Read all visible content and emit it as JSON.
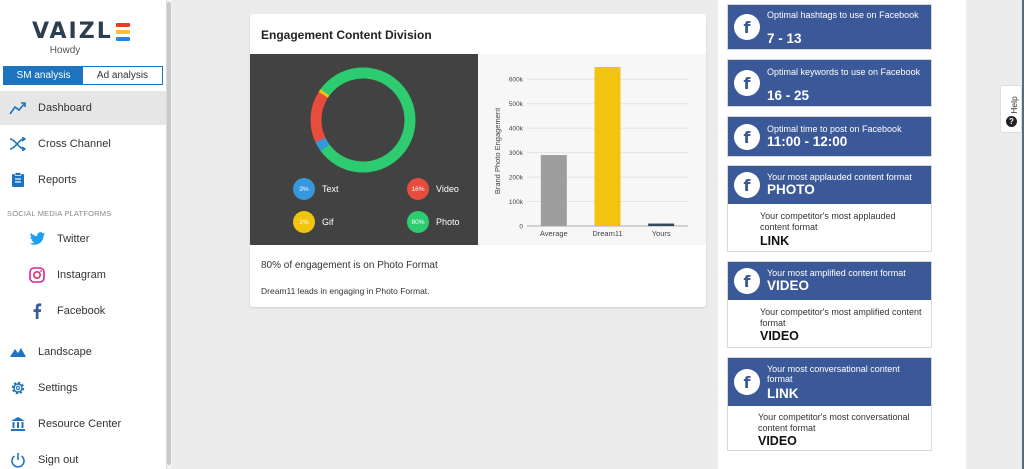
{
  "sidebar": {
    "logo": "VAIZL",
    "logo_colors": [
      "#e53935",
      "#fbc02d",
      "#1e88e5"
    ],
    "greeting": "Howdy",
    "tabs": [
      {
        "label": "SM analysis",
        "active": true
      },
      {
        "label": "Ad analysis",
        "active": false
      }
    ],
    "nav": {
      "dashboard": "Dashboard",
      "cross_channel": "Cross Channel",
      "reports": "Reports",
      "section_label": "SOCIAL MEDIA PLATFORMS",
      "twitter": "Twitter",
      "instagram": "Instagram",
      "facebook": "Facebook",
      "landscape": "Landscape",
      "settings": "Settings",
      "resource_center": "Resource Center",
      "sign_out": "Sign out"
    }
  },
  "engagement": {
    "title": "Engagement Content Division",
    "legend": [
      {
        "pct": "3%",
        "label": "Text",
        "color": "#3498db"
      },
      {
        "pct": "16%",
        "label": "Video",
        "color": "#e74c3c"
      },
      {
        "pct": "1%",
        "label": "Gif",
        "color": "#f1c40f"
      },
      {
        "pct": "80%",
        "label": "Photo",
        "color": "#2ecc71"
      }
    ],
    "summary": "80% of engagement is on Photo Format",
    "detail": "Dream11 leads in engaging in Photo Format."
  },
  "chart_data": [
    {
      "type": "pie",
      "labels": [
        "Text",
        "Video",
        "Gif",
        "Photo"
      ],
      "values": [
        3,
        16,
        1,
        80
      ],
      "colors": [
        "#3498db",
        "#e74c3c",
        "#f1c40f",
        "#2ecc71"
      ]
    },
    {
      "type": "bar",
      "categories": [
        "Average",
        "Dream11",
        "Yours"
      ],
      "values": [
        290000,
        650000,
        10000
      ],
      "colors": [
        "#9e9e9e",
        "#f1c40f",
        "#34495e"
      ],
      "ylabel": "Brand Photo Engagement",
      "ylim": [
        0,
        650000
      ],
      "yticks": [
        0,
        100000,
        200000,
        300000,
        400000,
        500000,
        600000
      ],
      "ytick_labels": [
        "0",
        "100k",
        "200k",
        "300k",
        "400k",
        "500k",
        "600k"
      ],
      "grid": true
    }
  ],
  "insights": [
    {
      "label": "Optimal hashtags to use on Facebook",
      "value": "7 - 13"
    },
    {
      "label": "Optimal keywords to use on Facebook",
      "value": "16 - 25"
    },
    {
      "label": "Optimal time to post on Facebook",
      "value": "11:00 - 12:00"
    },
    {
      "label": "Your most applauded content format",
      "value": "PHOTO",
      "comp_label": "Your competitor's most applauded content format",
      "comp_value": "LINK"
    },
    {
      "label": "Your most amplified content format",
      "value": "VIDEO",
      "comp_label": "Your competitor's most amplified content format",
      "comp_value": "VIDEO"
    },
    {
      "label": "Your most conversational content format",
      "value": "LINK",
      "comp_label": "Your competitor's most conversational content format",
      "comp_value": "VIDEO"
    }
  ],
  "help": {
    "label": "Help"
  },
  "fb_glyph": "f",
  "icons": [
    "dashboard-icon",
    "cross-channel-icon",
    "reports-icon",
    "twitter-icon",
    "instagram-icon",
    "facebook-icon",
    "landscape-icon",
    "settings-icon",
    "resource-center-icon",
    "sign-out-icon"
  ]
}
